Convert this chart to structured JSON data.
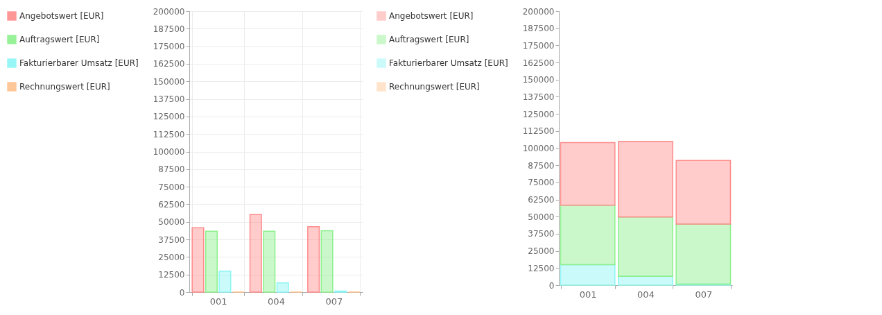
{
  "chart_data": [
    {
      "type": "bar",
      "categories": [
        "001",
        "004",
        "007"
      ],
      "series": [
        {
          "name": "Angebotswert [EUR]",
          "color": "#ff8c8c",
          "values": [
            45800,
            55200,
            46500
          ]
        },
        {
          "name": "Auftragswert [EUR]",
          "color": "#8cf08c",
          "values": [
            43300,
            43300,
            43700
          ]
        },
        {
          "name": "Fakturierbarer Umsatz [EUR]",
          "color": "#8cf5f5",
          "values": [
            15000,
            6500,
            800
          ]
        },
        {
          "name": "Rechnungswert [EUR]",
          "color": "#ffc08c",
          "values": [
            0,
            0,
            0
          ]
        }
      ],
      "ylim": [
        0,
        200000
      ],
      "yticks": [
        0,
        12500,
        25000,
        37500,
        50000,
        62500,
        75000,
        87500,
        100000,
        112500,
        125000,
        137500,
        150000,
        162500,
        175000,
        187500,
        200000
      ],
      "grid": true,
      "legend": "left"
    },
    {
      "type": "bar",
      "stacked": true,
      "categories": [
        "001",
        "004",
        "007"
      ],
      "series": [
        {
          "name": "Rechnungswert [EUR]",
          "color": "#ffc08c",
          "values": [
            0,
            0,
            0
          ]
        },
        {
          "name": "Fakturierbarer Umsatz [EUR]",
          "color": "#8cf5f5",
          "values": [
            15000,
            6500,
            800
          ]
        },
        {
          "name": "Auftragswert [EUR]",
          "color": "#8cf08c",
          "values": [
            43300,
            43300,
            43700
          ]
        },
        {
          "name": "Angebotswert [EUR]",
          "color": "#ff8c8c",
          "values": [
            45800,
            55200,
            46500
          ]
        }
      ],
      "ylim": [
        0,
        200000
      ],
      "yticks": [
        0,
        12500,
        25000,
        37500,
        50000,
        62500,
        75000,
        87500,
        100000,
        112500,
        125000,
        137500,
        150000,
        162500,
        175000,
        187500,
        200000
      ],
      "grid": false,
      "legend": "left"
    }
  ]
}
